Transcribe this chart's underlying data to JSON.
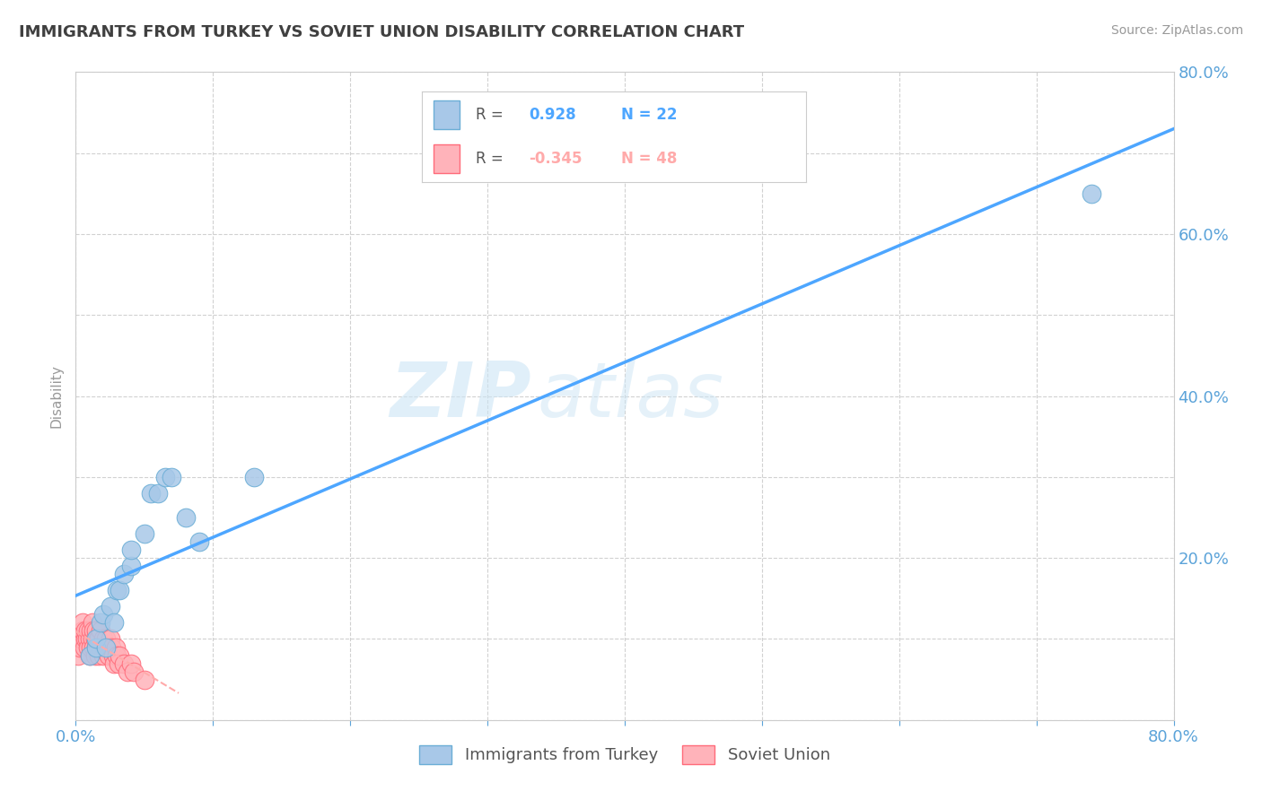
{
  "title": "IMMIGRANTS FROM TURKEY VS SOVIET UNION DISABILITY CORRELATION CHART",
  "source": "Source: ZipAtlas.com",
  "ylabel": "Disability",
  "xlim": [
    0,
    0.8
  ],
  "ylim": [
    0,
    0.8
  ],
  "turkey_color": "#a8c8e8",
  "turkey_edge_color": "#6baed6",
  "soviet_color": "#ffb3ba",
  "soviet_edge_color": "#ff6b7a",
  "turkey_R": 0.928,
  "turkey_N": 22,
  "soviet_R": -0.345,
  "soviet_N": 48,
  "turkey_line_color": "#4da6ff",
  "soviet_line_color": "#ffaaaa",
  "watermark_zip": "ZIP",
  "watermark_atlas": "atlas",
  "legend_label_turkey": "Immigrants from Turkey",
  "legend_label_soviet": "Soviet Union",
  "turkey_scatter_x": [
    0.01,
    0.015,
    0.015,
    0.018,
    0.02,
    0.022,
    0.025,
    0.028,
    0.03,
    0.032,
    0.035,
    0.04,
    0.04,
    0.05,
    0.055,
    0.06,
    0.065,
    0.07,
    0.08,
    0.09,
    0.13,
    0.74
  ],
  "turkey_scatter_y": [
    0.08,
    0.09,
    0.1,
    0.12,
    0.13,
    0.09,
    0.14,
    0.12,
    0.16,
    0.16,
    0.18,
    0.19,
    0.21,
    0.23,
    0.28,
    0.28,
    0.3,
    0.3,
    0.25,
    0.22,
    0.3,
    0.65
  ],
  "soviet_scatter_x": [
    0.002,
    0.003,
    0.004,
    0.005,
    0.005,
    0.006,
    0.007,
    0.007,
    0.008,
    0.009,
    0.009,
    0.01,
    0.01,
    0.011,
    0.011,
    0.012,
    0.012,
    0.013,
    0.013,
    0.014,
    0.014,
    0.015,
    0.015,
    0.016,
    0.016,
    0.017,
    0.017,
    0.018,
    0.018,
    0.02,
    0.02,
    0.021,
    0.022,
    0.023,
    0.024,
    0.025,
    0.026,
    0.027,
    0.028,
    0.029,
    0.03,
    0.031,
    0.032,
    0.035,
    0.038,
    0.04,
    0.042,
    0.05
  ],
  "soviet_scatter_y": [
    0.08,
    0.09,
    0.1,
    0.11,
    0.12,
    0.09,
    0.1,
    0.11,
    0.1,
    0.09,
    0.11,
    0.08,
    0.1,
    0.09,
    0.11,
    0.1,
    0.12,
    0.09,
    0.11,
    0.1,
    0.08,
    0.09,
    0.11,
    0.1,
    0.09,
    0.08,
    0.1,
    0.09,
    0.11,
    0.1,
    0.08,
    0.09,
    0.1,
    0.09,
    0.08,
    0.1,
    0.09,
    0.08,
    0.07,
    0.09,
    0.08,
    0.07,
    0.08,
    0.07,
    0.06,
    0.07,
    0.06,
    0.05
  ],
  "background_color": "#ffffff",
  "grid_color": "#cccccc",
  "title_color": "#404040",
  "tick_color": "#5ba3d9"
}
